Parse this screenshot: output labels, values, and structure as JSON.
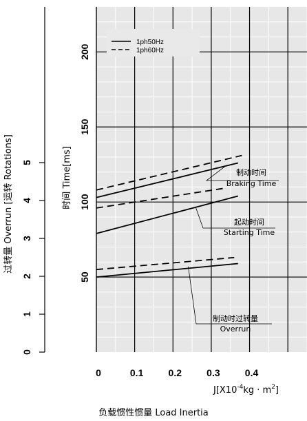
{
  "chart_data": {
    "type": "line",
    "xlabel": "J[X10",
    "xlabel_exp": "-4",
    "xlabel_unit": "kg · m",
    "xlabel_unit_exp": "2",
    "xlabel_close": "]",
    "title": "负载惯性惯量 Load Inertia",
    "y_left_label": "时间 Time[ms]",
    "y_right_label": "过转量 Overrun [运转 Rotations]",
    "x_ticks": [
      "0",
      "0.1",
      "0.2",
      "0.3",
      "0.4"
    ],
    "x_range": [
      0,
      0.55
    ],
    "y_left_ticks": [
      "50",
      "100",
      "150",
      "200"
    ],
    "y_left_range": [
      0,
      230
    ],
    "y_right_ticks": [
      "0",
      "1",
      "2",
      "3",
      "4",
      "5"
    ],
    "legend": [
      {
        "label": "1ph50Hz",
        "style": "solid"
      },
      {
        "label": "1ph60Hz",
        "style": "dashed"
      }
    ],
    "series": [
      {
        "name": "1ph50Hz",
        "group": "braking",
        "style": "solid",
        "x": [
          0,
          0.37
        ],
        "y": [
          103,
          126
        ]
      },
      {
        "name": "1ph60Hz",
        "group": "braking",
        "style": "dashed",
        "x": [
          0,
          0.38
        ],
        "y": [
          108,
          131
        ]
      },
      {
        "name": "1ph60Hz",
        "group": "starting",
        "style": "dashed",
        "x": [
          0,
          0.33
        ],
        "y": [
          96,
          109
        ]
      },
      {
        "name": "1ph50Hz",
        "group": "starting",
        "style": "solid",
        "x": [
          0,
          0.37
        ],
        "y": [
          79,
          104
        ]
      },
      {
        "name": "1ph60Hz",
        "group": "overrun",
        "style": "dashed",
        "x": [
          0,
          0.36
        ],
        "y": [
          55,
          63
        ]
      },
      {
        "name": "1ph50Hz",
        "group": "overrun",
        "style": "solid",
        "x": [
          0,
          0.37
        ],
        "y": [
          50,
          59
        ]
      }
    ],
    "annotations": [
      {
        "zh": "制动时间",
        "en": "Braking Time"
      },
      {
        "zh": "起动时间",
        "en": "Starting Time"
      },
      {
        "zh": "制动时过转量",
        "en": "Overrun"
      }
    ]
  }
}
